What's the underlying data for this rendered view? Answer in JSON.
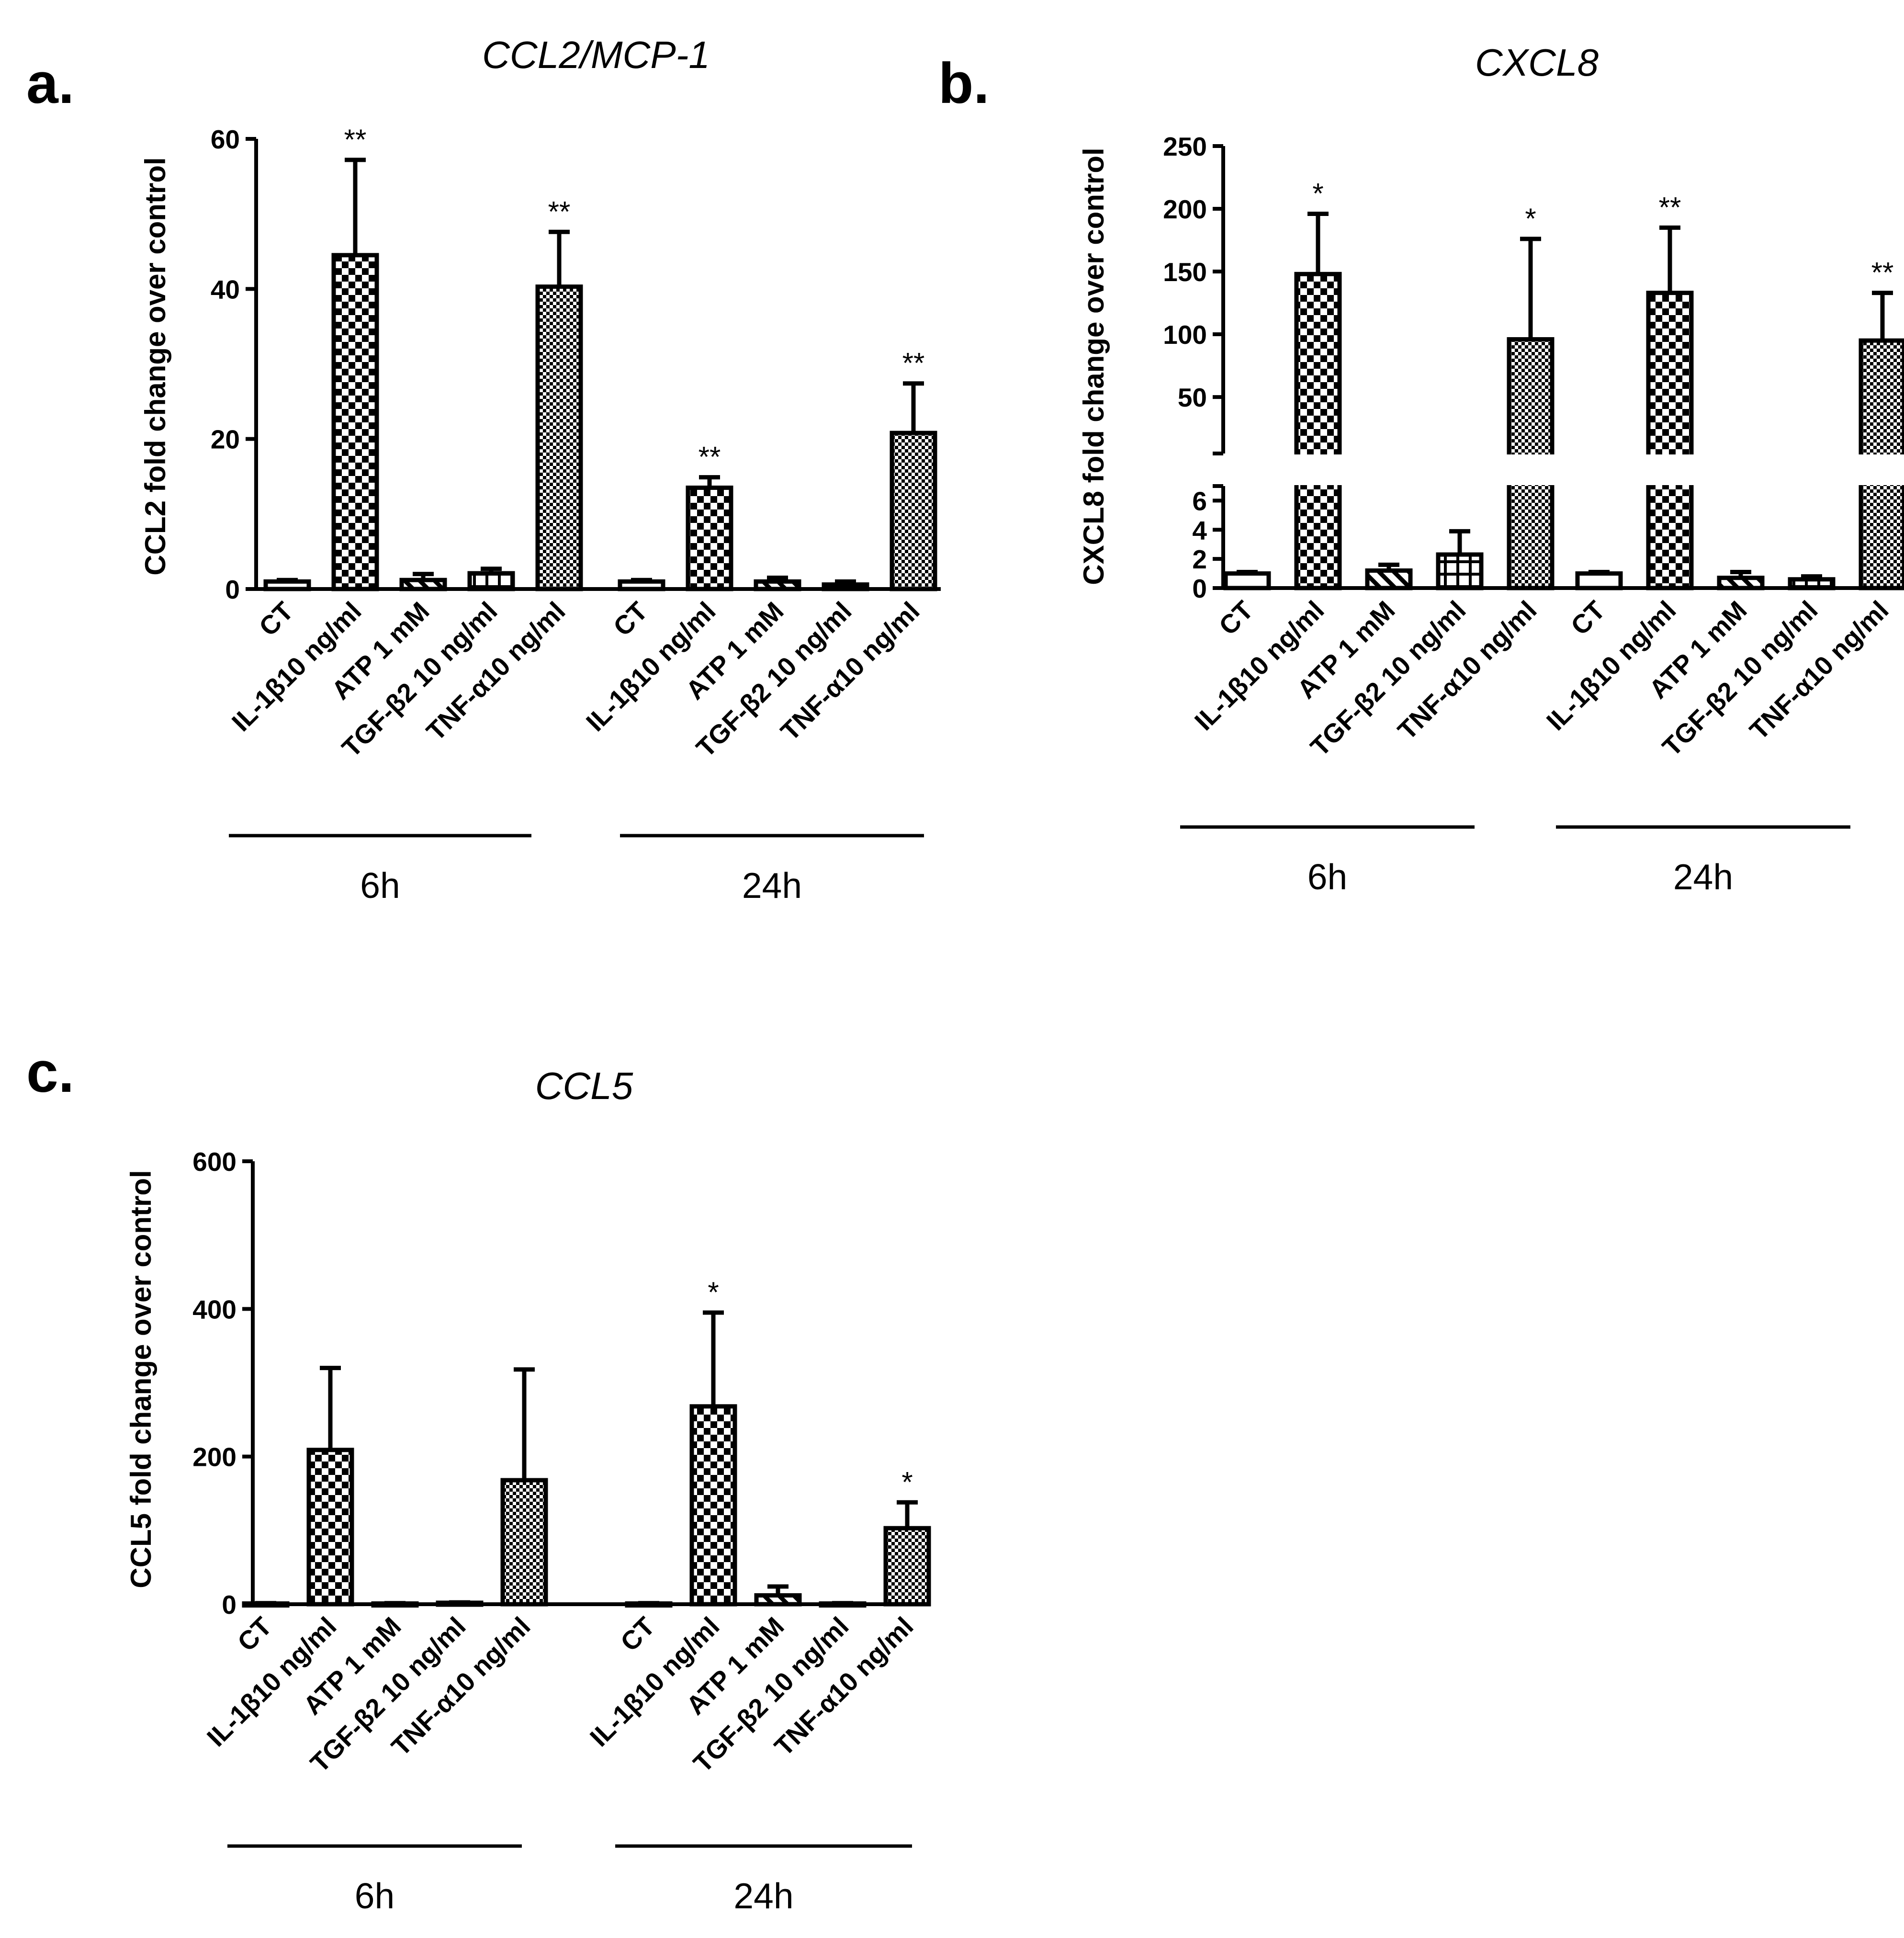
{
  "chart_data": [
    {
      "panel": "a.",
      "type": "bar",
      "title": "CCL2/MCP-1",
      "ylabel": "CCL2 fold change over control",
      "ylim": [
        0,
        60
      ],
      "yticks": [
        "0",
        "20",
        "40",
        "60"
      ],
      "groups": [
        {
          "label": "6h",
          "categories": [
            "CT",
            "IL-1β10 ng/ml",
            "ATP 1 mM",
            "TGF-β2 10 ng/ml",
            "TNF-α10 ng/ml"
          ],
          "values": [
            1,
            44.5,
            1.2,
            2.1,
            40.3
          ],
          "errors": [
            0.2,
            12.7,
            0.8,
            0.6,
            7.3
          ],
          "significance": [
            "",
            "**",
            "",
            "",
            "**"
          ]
        },
        {
          "label": "24h",
          "categories": [
            "CT",
            "IL-1β10 ng/ml",
            "ATP 1 mM",
            "TGF-β2 10 ng/ml",
            "TNF-α10 ng/ml"
          ],
          "values": [
            1,
            13.5,
            1,
            0.6,
            20.8
          ],
          "errors": [
            0.2,
            1.4,
            0.5,
            0.4,
            6.6
          ],
          "significance": [
            "",
            "**",
            "",
            "",
            "**"
          ]
        }
      ],
      "patterns": [
        "open",
        "check-large",
        "hatch",
        "grid",
        "check-small"
      ]
    },
    {
      "panel": "b.",
      "type": "bar",
      "title": "CXCL8",
      "ylabel": "CXCL8 fold change over control",
      "broken_axis": true,
      "lower_ylim": [
        0,
        7
      ],
      "upper_ylim": [
        5,
        250
      ],
      "lower_yticks": [
        "0",
        "2",
        "4",
        "6"
      ],
      "upper_yticks": [
        "50",
        "100",
        "150",
        "200",
        "250"
      ],
      "groups": [
        {
          "label": "6h",
          "categories": [
            "CT",
            "IL-1β10 ng/ml",
            "ATP 1 mM",
            "TGF-β2 10 ng/ml",
            "TNF-α10 ng/ml"
          ],
          "values": [
            1,
            148,
            1.2,
            2.3,
            96
          ],
          "errors": [
            0.1,
            48,
            0.4,
            1.6,
            80
          ],
          "significance": [
            "",
            "*",
            "",
            "",
            "*"
          ]
        },
        {
          "label": "24h",
          "categories": [
            "CT",
            "IL-1β10 ng/ml",
            "ATP 1 mM",
            "TGF-β2 10 ng/ml",
            "TNF-α10 ng/ml"
          ],
          "values": [
            1,
            133,
            0.7,
            0.6,
            95
          ],
          "errors": [
            0.1,
            52,
            0.4,
            0.2,
            38
          ],
          "significance": [
            "",
            "**",
            "",
            "",
            "**"
          ]
        }
      ],
      "patterns": [
        "open",
        "check-large",
        "hatch",
        "grid",
        "check-small"
      ]
    },
    {
      "panel": "c.",
      "type": "bar",
      "title": "CCL5",
      "ylabel": "CCL5 fold change over control",
      "ylim": [
        0,
        600
      ],
      "yticks": [
        "0",
        "200",
        "400",
        "600"
      ],
      "groups": [
        {
          "label": "6h",
          "categories": [
            "CT",
            "IL-1β10 ng/ml",
            "ATP 1 mM",
            "TGF-β2 10 ng/ml",
            "TNF-α10 ng/ml"
          ],
          "values": [
            1,
            209,
            1,
            2,
            168
          ],
          "errors": [
            0.5,
            111,
            0.5,
            0.5,
            150
          ],
          "significance": [
            "",
            "",
            "",
            "",
            ""
          ]
        },
        {
          "label": "24h",
          "categories": [
            "CT",
            "IL-1β10 ng/ml",
            "ATP 1 mM",
            "TGF-β2 10 ng/ml",
            "TNF-α10 ng/ml"
          ],
          "values": [
            1,
            268,
            12,
            1,
            103
          ],
          "errors": [
            0.5,
            127,
            12,
            0.5,
            35
          ],
          "significance": [
            "",
            "*",
            "",
            "",
            "*"
          ]
        }
      ],
      "patterns": [
        "open",
        "check-large",
        "hatch",
        "grid",
        "check-small"
      ]
    }
  ]
}
